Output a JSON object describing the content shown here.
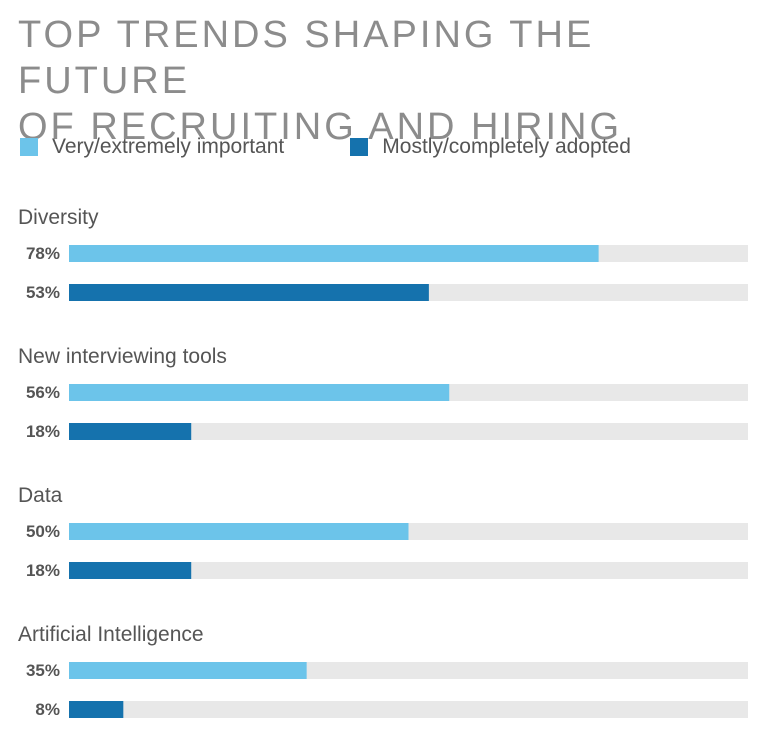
{
  "chart_data": {
    "type": "bar",
    "orientation": "horizontal",
    "title_lines": [
      "TOP TRENDS SHAPING THE FUTURE",
      "OF RECRUITING AND HIRING"
    ],
    "categories": [
      "Diversity",
      "New interviewing tools",
      "Data",
      "Artificial Intelligence"
    ],
    "series": [
      {
        "name": "Very/extremely important",
        "color": "#6cc4ea",
        "values": [
          78,
          56,
          50,
          35
        ],
        "labels": [
          "78%",
          "56%",
          "50%",
          "35%"
        ]
      },
      {
        "name": "Mostly/completely adopted",
        "color": "#1572ad",
        "values": [
          53,
          18,
          18,
          8
        ],
        "labels": [
          "53%",
          "18%",
          "18%",
          "8%"
        ]
      }
    ],
    "xlim": [
      0,
      100
    ],
    "track_color": "#e8e8e8",
    "legend_position": "top-left",
    "grid": false
  }
}
